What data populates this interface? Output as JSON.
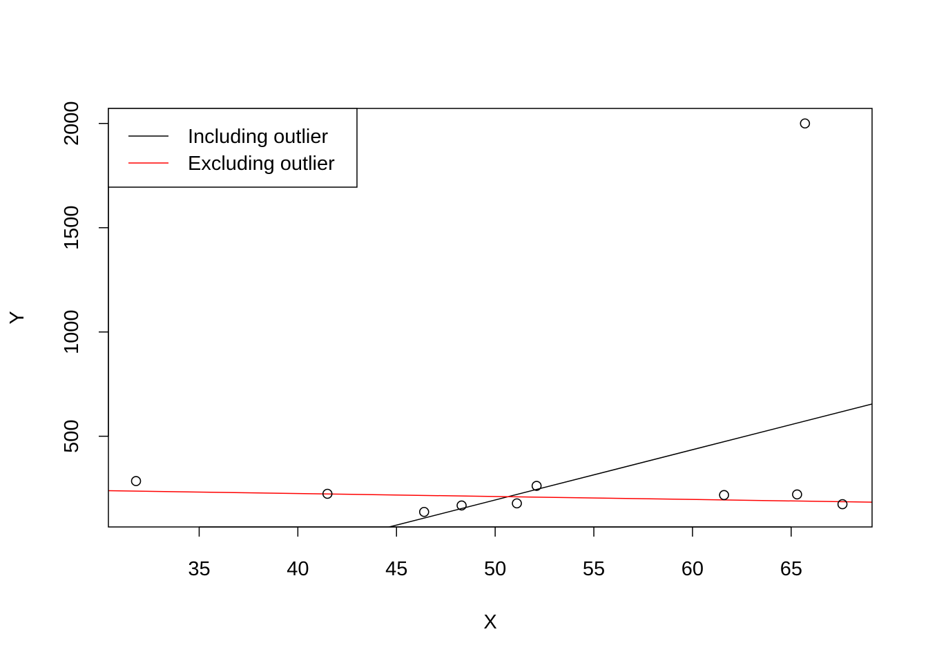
{
  "chart_data": {
    "type": "scatter",
    "title": "",
    "xlabel": "X",
    "ylabel": "Y",
    "xlim": [
      30.4,
      69.1
    ],
    "ylim": [
      65,
      2072
    ],
    "xticks": [
      35,
      40,
      45,
      50,
      55,
      60,
      65
    ],
    "yticks": [
      500,
      1000,
      1500,
      2000
    ],
    "points": [
      {
        "x": 31.8,
        "y": 285
      },
      {
        "x": 41.5,
        "y": 224
      },
      {
        "x": 46.4,
        "y": 137
      },
      {
        "x": 48.3,
        "y": 168
      },
      {
        "x": 51.1,
        "y": 178
      },
      {
        "x": 52.1,
        "y": 262
      },
      {
        "x": 61.6,
        "y": 218
      },
      {
        "x": 65.3,
        "y": 221
      },
      {
        "x": 65.7,
        "y": 2000
      },
      {
        "x": 67.6,
        "y": 174
      }
    ],
    "lines": [
      {
        "name": "Including outlier",
        "color": "#000000",
        "intercept": -1010.6,
        "slope": 24.1
      },
      {
        "name": "Excluding outlier",
        "color": "#ff0000",
        "intercept": 282.0,
        "slope": -1.42
      }
    ],
    "legend": {
      "position": "top-left",
      "entries": [
        {
          "label": "Including outlier",
          "color": "#000000"
        },
        {
          "label": "Excluding outlier",
          "color": "#ff0000"
        }
      ]
    },
    "grid": false
  }
}
